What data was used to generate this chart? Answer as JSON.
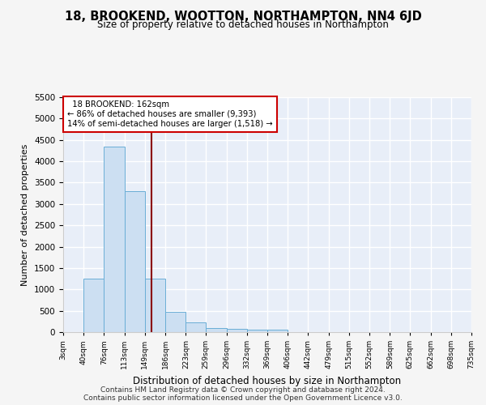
{
  "title": "18, BROOKEND, WOOTTON, NORTHAMPTON, NN4 6JD",
  "subtitle": "Size of property relative to detached houses in Northampton",
  "xlabel": "Distribution of detached houses by size in Northampton",
  "ylabel": "Number of detached properties",
  "footnote1": "Contains HM Land Registry data © Crown copyright and database right 2024.",
  "footnote2": "Contains public sector information licensed under the Open Government Licence v3.0.",
  "annotation_line1": "18 BROOKEND: 162sqm",
  "annotation_line2": "← 86% of detached houses are smaller (9,393)",
  "annotation_line3": "14% of semi-detached houses are larger (1,518) →",
  "property_size": 162,
  "bin_edges": [
    3,
    40,
    76,
    113,
    149,
    186,
    223,
    259,
    296,
    332,
    369,
    406,
    442,
    479,
    515,
    552,
    589,
    625,
    662,
    698,
    735
  ],
  "bar_heights": [
    0,
    1260,
    4350,
    3300,
    1260,
    480,
    220,
    90,
    80,
    60,
    60,
    0,
    0,
    0,
    0,
    0,
    0,
    0,
    0,
    0
  ],
  "bar_color": "#ccdff2",
  "bar_edge_color": "#6aaed6",
  "vline_color": "#8b0000",
  "background_color": "#e8eef8",
  "fig_background": "#f5f5f5",
  "grid_color": "#ffffff",
  "ylim": [
    0,
    5500
  ],
  "yticks": [
    0,
    500,
    1000,
    1500,
    2000,
    2500,
    3000,
    3500,
    4000,
    4500,
    5000,
    5500
  ]
}
